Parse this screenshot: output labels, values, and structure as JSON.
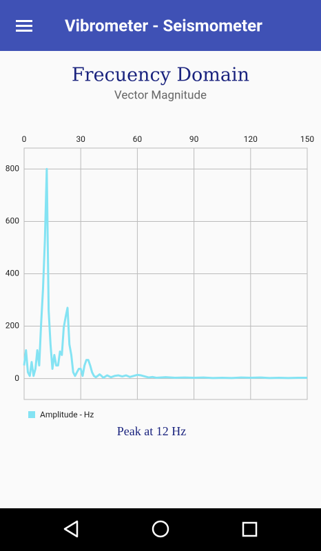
{
  "app_bar": {
    "title": "Vibrometer - Seismometer"
  },
  "chart_data": {
    "type": "line",
    "title": "Frecuency Domain",
    "subtitle": "Vector Magnitude",
    "x": [
      0,
      1,
      2,
      3,
      4,
      5,
      6,
      7,
      8,
      9,
      10,
      11,
      12,
      13,
      14,
      15,
      16,
      17,
      18,
      19,
      20,
      21,
      22,
      23,
      24,
      25,
      26,
      27,
      28,
      29,
      30,
      31,
      32,
      33,
      34,
      35,
      36,
      37,
      38,
      39,
      40,
      41,
      42,
      44,
      46,
      48,
      50,
      52,
      54,
      56,
      58,
      60,
      62,
      64,
      66,
      68,
      70,
      75,
      80,
      85,
      90,
      95,
      100,
      105,
      110,
      115,
      120,
      125,
      130,
      135,
      140,
      145,
      150
    ],
    "series": [
      {
        "name": "Amplitude - Hz",
        "color": "#84e3f3",
        "values": [
          50,
          108,
          24,
          10,
          63,
          10,
          37,
          108,
          50,
          208,
          340,
          525,
          800,
          260,
          130,
          37,
          90,
          50,
          50,
          103,
          90,
          195,
          235,
          270,
          130,
          90,
          24,
          10,
          24,
          37,
          37,
          10,
          50,
          71,
          71,
          50,
          24,
          10,
          5,
          10,
          16,
          10,
          3,
          12,
          5,
          10,
          12,
          8,
          12,
          6,
          10,
          14,
          12,
          8,
          4,
          6,
          3,
          5,
          3,
          4,
          3,
          4,
          2,
          3,
          2,
          4,
          3,
          4,
          2,
          3,
          2,
          3,
          3
        ]
      }
    ],
    "xlim": [
      0,
      150
    ],
    "xticks": [
      0,
      30,
      60,
      90,
      120,
      150
    ],
    "ylim": [
      -80,
      880
    ],
    "yticks": [
      0,
      200,
      400,
      600,
      800
    ],
    "grid": true,
    "legend": "bottom-left",
    "annotation": "Peak at 12 Hz"
  }
}
